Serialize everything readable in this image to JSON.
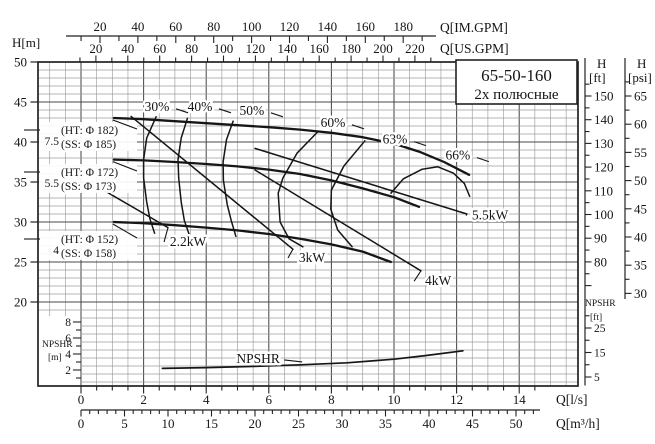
{
  "page": {
    "background": "#ffffff",
    "ink": "#161616",
    "grid_minor": "#9b9b9b",
    "grid_major": "#4a4a4a"
  },
  "title_box": {
    "model": "65-50-160",
    "poles": "2х полюсные"
  },
  "corner_label": "H[m]",
  "axes": {
    "top_im": {
      "unit": "Q[IM.GPM]",
      "ticks": [
        20,
        40,
        60,
        80,
        100,
        120,
        140,
        160,
        180
      ]
    },
    "top_us": {
      "unit": "Q[US.GPM]",
      "ticks": [
        20,
        40,
        60,
        80,
        100,
        120,
        140,
        160,
        180,
        200,
        220
      ]
    },
    "left_h_m": {
      "unit": "H[m]",
      "ticks": [
        50,
        45,
        40,
        35,
        30,
        25,
        20
      ]
    },
    "right_h_ft": {
      "unit_lines": [
        "H",
        "[ft]"
      ],
      "ticks": [
        150,
        140,
        130,
        120,
        110,
        100,
        90,
        80
      ]
    },
    "right_h_psi": {
      "unit_lines": [
        "H",
        "[psi]"
      ],
      "ticks": [
        65,
        60,
        55,
        50,
        45,
        40,
        35,
        30
      ]
    },
    "left_npshr_m": {
      "unit_lines": [
        "NPSHR",
        "[m]"
      ],
      "ticks": [
        8,
        6,
        4,
        2
      ]
    },
    "right_npshr_ft": {
      "unit_lines": [
        "NPSHR",
        "[ft]"
      ],
      "ticks": [
        25,
        15,
        5
      ]
    },
    "bottom_q_ls": {
      "unit": "Q[l/s]",
      "ticks": [
        0,
        2,
        4,
        6,
        8,
        10,
        12,
        14
      ]
    },
    "bottom_q_m3h": {
      "unit": "Q[m³/h]",
      "ticks": [
        0,
        5,
        10,
        15,
        20,
        25,
        30,
        35,
        40,
        45,
        50
      ]
    }
  },
  "chart_data": {
    "type": "line",
    "title": "65-50-160",
    "subtitle": "2х полюсные",
    "x_axis": {
      "label": "Q[l/s]",
      "range": [
        0,
        14
      ],
      "secondary": [
        "Q[m³/h]",
        "Q[IM.GPM]",
        "Q[US.GPM]"
      ]
    },
    "y_axis": {
      "label": "H[m]",
      "range": [
        20,
        50
      ],
      "secondary": [
        "H[ft]",
        "H[psi]"
      ]
    },
    "head_curves": [
      {
        "id": "phi182",
        "power": "7.5",
        "label_ht": "(HT: Φ 182)",
        "label_ss": "(SS: Φ 185)",
        "points": [
          [
            1.05,
            43.0
          ],
          [
            2,
            42.85
          ],
          [
            3,
            42.6
          ],
          [
            4,
            42.35
          ],
          [
            5,
            42.1
          ],
          [
            6,
            41.85
          ],
          [
            7,
            41.55
          ],
          [
            8,
            41.15
          ],
          [
            9,
            40.6
          ],
          [
            10,
            39.8
          ],
          [
            10.8,
            38.8
          ],
          [
            11.6,
            37.5
          ],
          [
            12.4,
            35.9
          ]
        ]
      },
      {
        "id": "phi172",
        "power": "5.5",
        "label_ht": "(HT: Φ 172)",
        "label_ss": "(SS: Φ 173)",
        "points": [
          [
            1.05,
            37.8
          ],
          [
            2,
            37.7
          ],
          [
            3,
            37.5
          ],
          [
            4,
            37.25
          ],
          [
            5,
            36.95
          ],
          [
            6,
            36.55
          ],
          [
            7,
            36.0
          ],
          [
            8,
            35.2
          ],
          [
            9,
            34.2
          ],
          [
            10,
            33.1
          ],
          [
            10.8,
            31.9
          ]
        ]
      },
      {
        "id": "phi152",
        "power": "4",
        "label_ht": "(HT: Φ 152)",
        "label_ss": "(SS: Φ 158)",
        "points": [
          [
            1.05,
            30.0
          ],
          [
            2,
            29.85
          ],
          [
            3,
            29.6
          ],
          [
            4,
            29.3
          ],
          [
            5,
            28.95
          ],
          [
            6,
            28.5
          ],
          [
            7,
            27.9
          ],
          [
            8,
            27.2
          ],
          [
            9,
            26.3
          ],
          [
            9.9,
            25.0
          ]
        ]
      }
    ],
    "efficiency_contours": [
      {
        "label": "30%",
        "label_pos": [
          2.43,
          44.4
        ],
        "points": [
          [
            2.4,
            43.15
          ],
          [
            2.1,
            40.5
          ],
          [
            2.0,
            37.8
          ],
          [
            2.0,
            35.5
          ],
          [
            2.1,
            32.5
          ],
          [
            2.2,
            30.4
          ],
          [
            2.35,
            28.6
          ]
        ]
      },
      {
        "label": "40%",
        "label_pos": [
          3.8,
          44.4
        ],
        "points": [
          [
            3.4,
            42.95
          ],
          [
            3.2,
            40.5
          ],
          [
            3.1,
            37.8
          ],
          [
            3.12,
            35.5
          ],
          [
            3.2,
            32.5
          ],
          [
            3.3,
            30.2
          ],
          [
            3.45,
            28.5
          ]
        ]
      },
      {
        "label": "50%",
        "label_pos": [
          5.46,
          43.9
        ],
        "points": [
          [
            4.86,
            42.6
          ],
          [
            4.65,
            40.3
          ],
          [
            4.54,
            37.5
          ],
          [
            4.55,
            35.2
          ],
          [
            4.67,
            32.2
          ],
          [
            4.8,
            30.2
          ],
          [
            4.95,
            28.2
          ]
        ]
      },
      {
        "label": "60%",
        "label_pos": [
          8.05,
          42.4
        ],
        "points": [
          [
            7.57,
            41.3
          ],
          [
            6.9,
            38.6
          ],
          [
            6.45,
            35.5
          ],
          [
            6.3,
            33.6
          ],
          [
            6.36,
            30.0
          ],
          [
            6.65,
            27.9
          ],
          [
            7.09,
            26.9
          ]
        ]
      },
      {
        "label": "63%",
        "label_pos": [
          10.03,
          40.3
        ],
        "points": [
          [
            9.07,
            40.15
          ],
          [
            8.4,
            37.0
          ],
          [
            8.0,
            34.0
          ],
          [
            7.98,
            31.6
          ],
          [
            8.2,
            29.0
          ],
          [
            8.66,
            26.9
          ]
        ]
      },
      {
        "label": "66%",
        "label_pos": [
          12.04,
          38.3
        ],
        "points": [
          [
            9.9,
            33.6
          ],
          [
            10.3,
            35.4
          ],
          [
            10.9,
            36.6
          ],
          [
            11.4,
            36.9
          ],
          [
            11.9,
            36.1
          ],
          [
            12.25,
            34.8
          ],
          [
            12.42,
            33.2
          ]
        ]
      }
    ],
    "power_lines": [
      {
        "label": "2.2kW",
        "label_pos": [
          3.42,
          27.5
        ],
        "points": [
          [
            0.45,
            34.6
          ],
          [
            2.78,
            29.3
          ]
        ]
      },
      {
        "label": "3kW",
        "label_pos": [
          7.38,
          25.5
        ],
        "points": [
          [
            1.6,
            43.2
          ],
          [
            6.77,
            26.6
          ]
        ]
      },
      {
        "label": "4kW",
        "label_pos": [
          11.41,
          22.6
        ],
        "points": [
          [
            5.56,
            36.5
          ],
          [
            10.86,
            23.9
          ]
        ]
      },
      {
        "label": "5.5kW",
        "label_pos": [
          13.07,
          30.8
        ],
        "points": [
          [
            5.56,
            39.2
          ],
          [
            12.33,
            31.0
          ]
        ]
      }
    ],
    "npshr_curve": {
      "label": "NPSHR",
      "label_pos": [
        5.66,
        3.38
      ],
      "points": [
        [
          2.6,
          2.2
        ],
        [
          4,
          2.3
        ],
        [
          5.5,
          2.45
        ],
        [
          7,
          2.65
        ],
        [
          8.5,
          2.9
        ],
        [
          10,
          3.35
        ],
        [
          11,
          3.8
        ],
        [
          12.2,
          4.4
        ]
      ]
    }
  }
}
